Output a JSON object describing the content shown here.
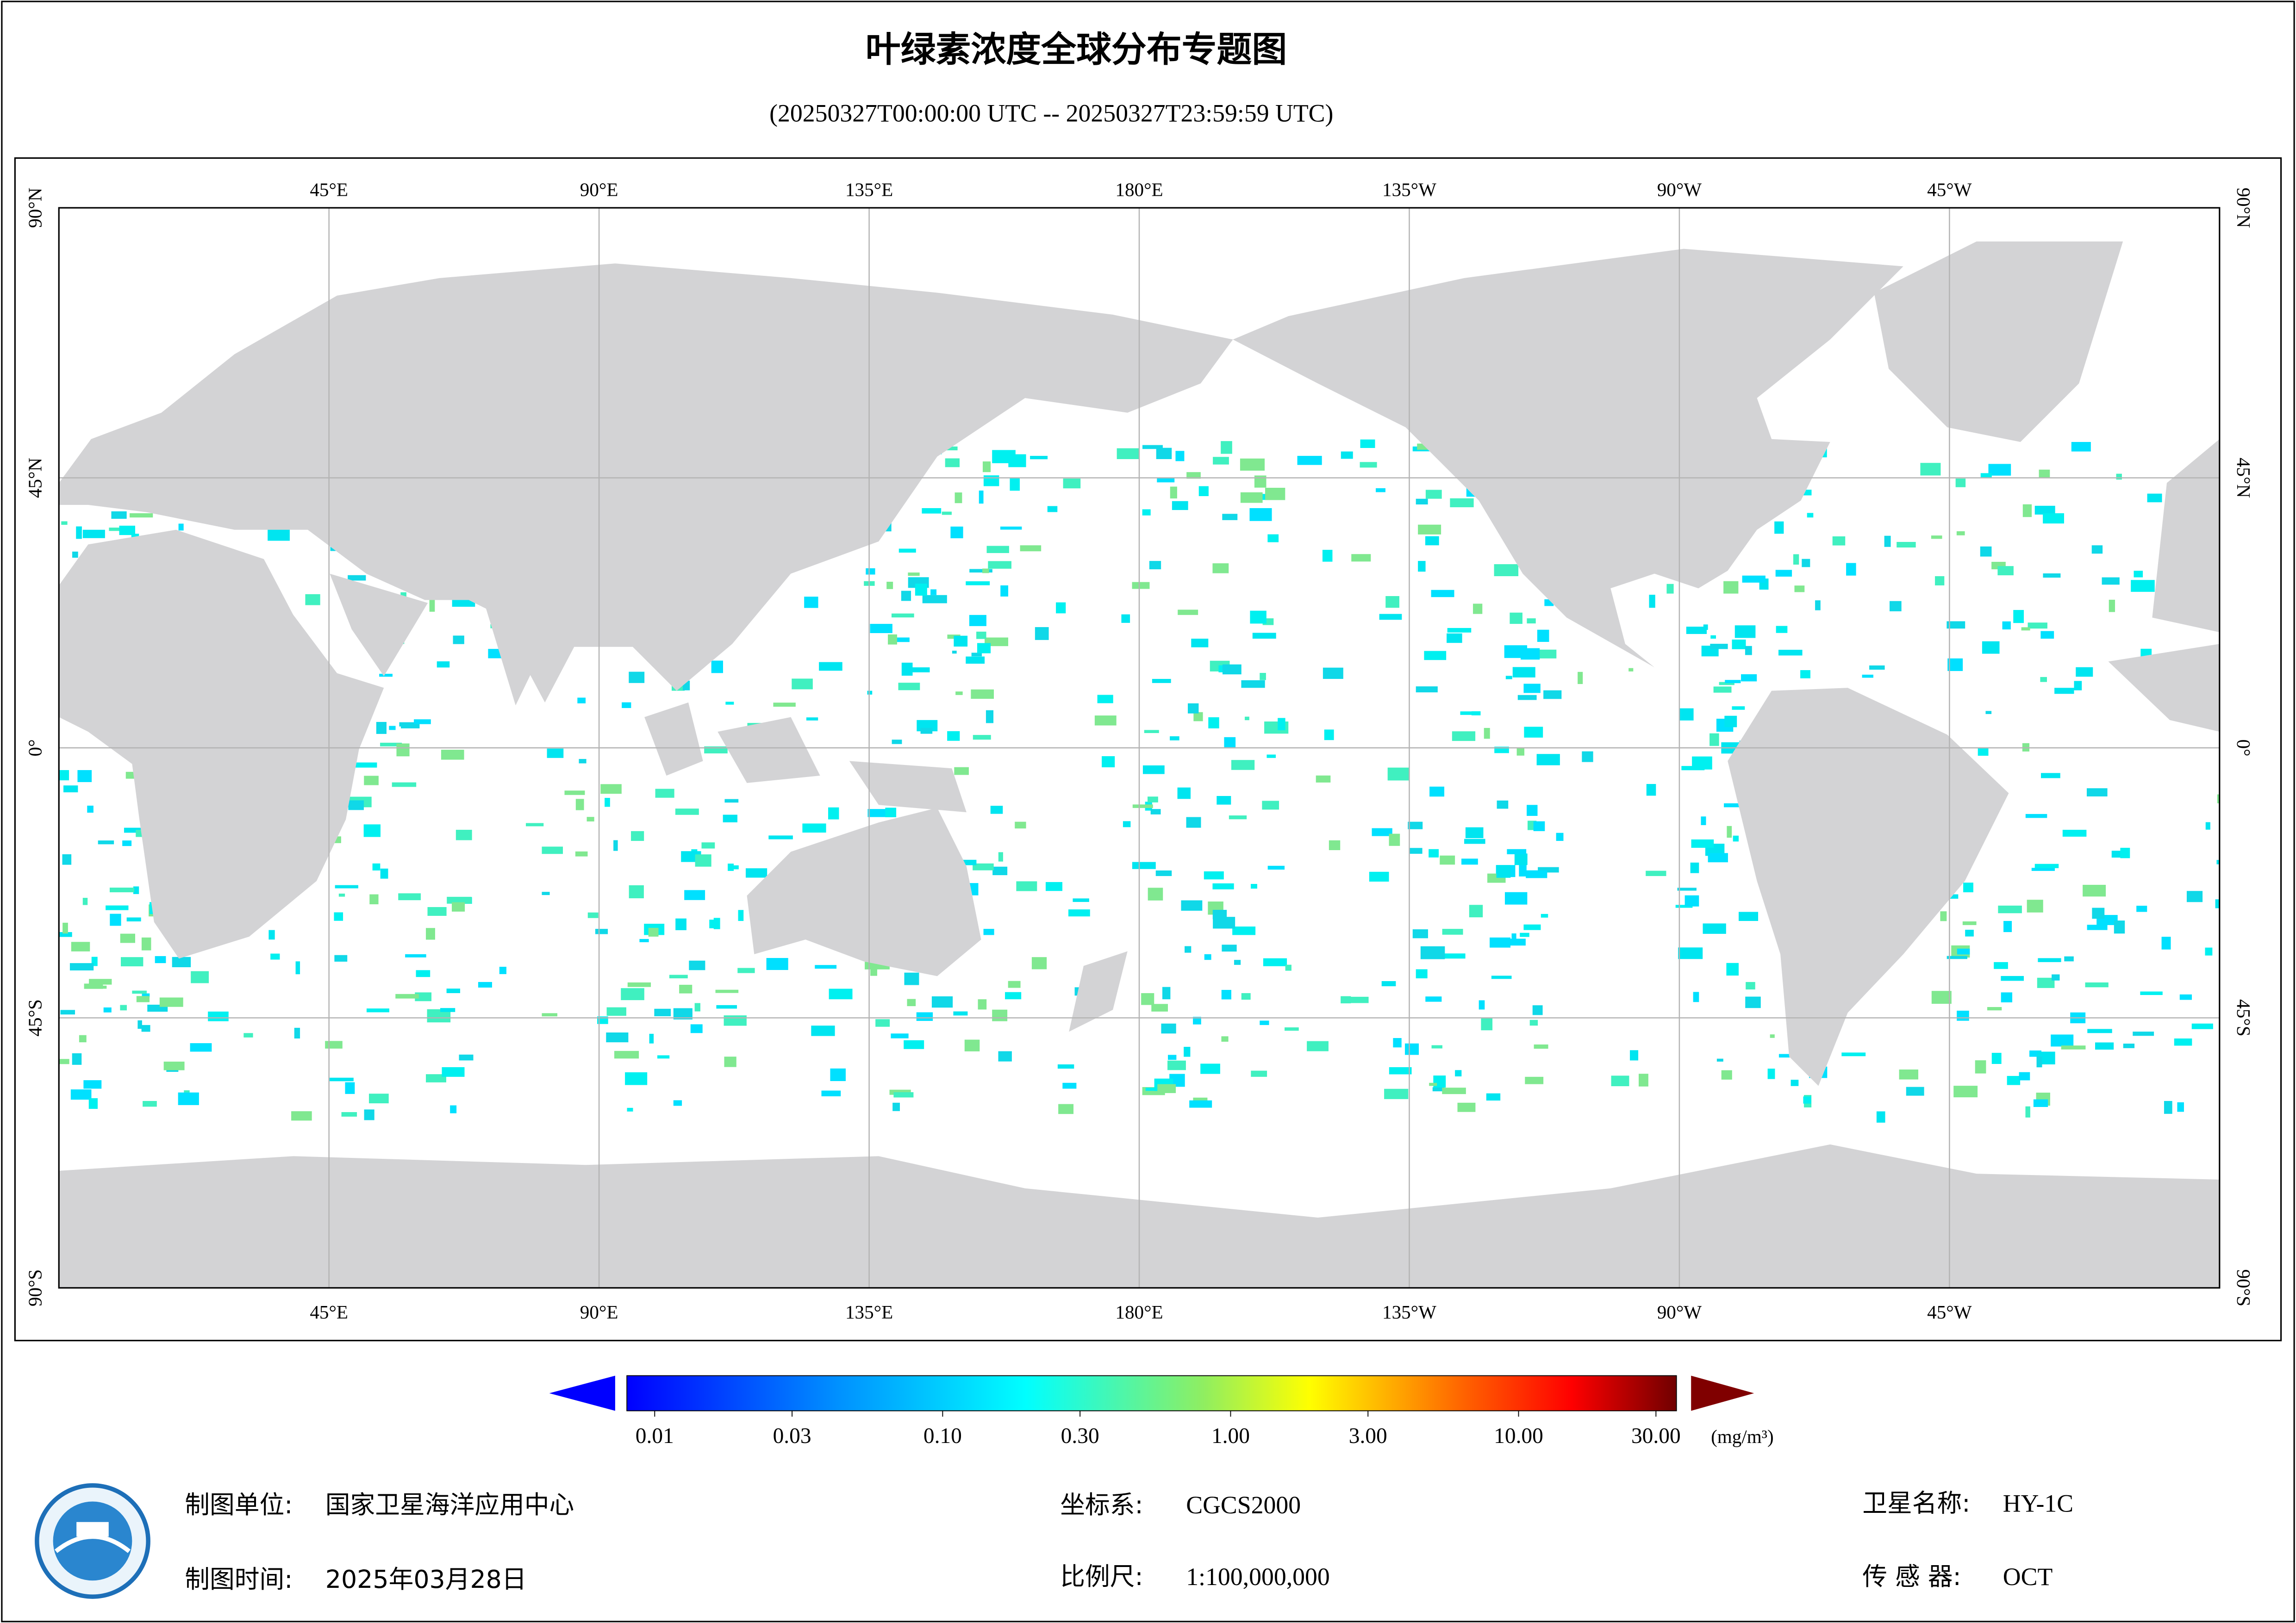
{
  "header": {
    "title": "叶绿素浓度全球分布专题图",
    "subtitle": "(20250327T00:00:00 UTC -- 20250327T23:59:59 UTC)"
  },
  "map": {
    "lon_labels": [
      "45°E",
      "90°E",
      "135°E",
      "180°E",
      "135°W",
      "90°W",
      "45°W"
    ],
    "lat_labels": [
      "90°N",
      "45°N",
      "0°",
      "45°S",
      "90°S"
    ]
  },
  "colorbar": {
    "scale": "log",
    "ticks": [
      {
        "value": 0.01,
        "label": "0.01"
      },
      {
        "value": 0.03,
        "label": "0.03"
      },
      {
        "value": 0.1,
        "label": "0.10"
      },
      {
        "value": 0.3,
        "label": "0.30"
      },
      {
        "value": 1,
        "label": "1.00"
      },
      {
        "value": 3,
        "label": "3.00"
      },
      {
        "value": 10,
        "label": "10.00"
      },
      {
        "value": 30,
        "label": "30.00"
      }
    ],
    "unit": "(mg/m³)"
  },
  "footer": {
    "unit_label": "制图单位:",
    "unit": "国家卫星海洋应用中心",
    "date_label": "制图时间:",
    "date": "2025年03月28日",
    "crs_label": "坐标系:",
    "crs": "CGCS2000",
    "scale_label": "比例尺:",
    "scale": "1:100,000,000",
    "satellite_label": "卫星名称:",
    "satellite": "HY-1C",
    "sensor_label": "传 感 器:",
    "sensor": "OCT"
  }
}
